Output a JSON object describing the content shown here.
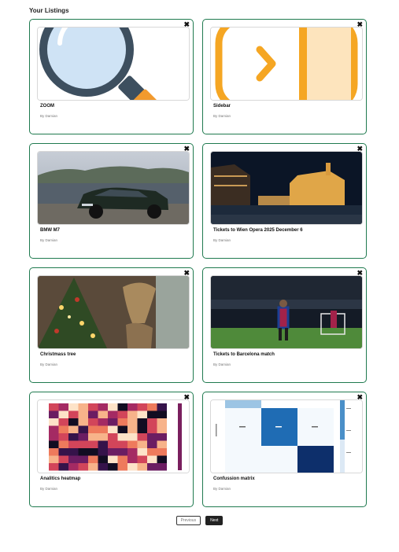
{
  "page": {
    "heading": "Your Listings"
  },
  "listings": [
    {
      "title": "ZOOM",
      "author": "By Damian",
      "image_icon": "magnifier-icon"
    },
    {
      "title": "Sidebar",
      "author": "By Damian",
      "image_icon": "sidebar-expand-icon"
    },
    {
      "title": "BMW M7",
      "author": "By Damian",
      "image_icon": "car-photo"
    },
    {
      "title": "Tickets to Wien Opera 2025 December 6",
      "author": "By Damian",
      "image_icon": "night-building-photo"
    },
    {
      "title": "Christmass tree",
      "author": "By Damian",
      "image_icon": "christmas-tree-photo"
    },
    {
      "title": "Tickets to Barcelona match",
      "author": "By Damian",
      "image_icon": "football-stadium-photo"
    },
    {
      "title": "Analitics heatmap",
      "author": "By Damian",
      "image_icon": "heatmap-chart"
    },
    {
      "title": "Confussion matrix",
      "author": "By Damian",
      "image_icon": "confusion-matrix-chart"
    }
  ],
  "close_glyph": "✖",
  "pagination": {
    "previous_label": "Previous",
    "next_label": "Next"
  },
  "colors": {
    "card_border": "#1f7a4f",
    "next_button_bg": "#222222"
  }
}
